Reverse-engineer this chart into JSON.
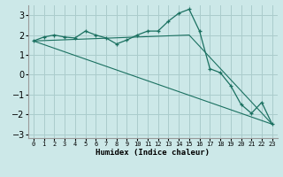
{
  "xlabel": "Humidex (Indice chaleur)",
  "ylabel": "",
  "xlim": [
    -0.5,
    23.5
  ],
  "ylim": [
    -3.2,
    3.5
  ],
  "yticks": [
    -3,
    -2,
    -1,
    0,
    1,
    2,
    3
  ],
  "xtick_labels": [
    "0",
    "1",
    "2",
    "3",
    "4",
    "5",
    "6",
    "7",
    "8",
    "9",
    "10",
    "11",
    "12",
    "13",
    "14",
    "15",
    "16",
    "17",
    "18",
    "19",
    "20",
    "21",
    "22",
    "23"
  ],
  "background_color": "#cce8e8",
  "grid_color": "#aacccc",
  "line_color": "#1a7060",
  "line1_x": [
    0,
    1,
    2,
    3,
    4,
    5,
    6,
    7,
    8,
    9,
    10,
    11,
    12,
    13,
    14,
    15,
    16,
    17,
    18,
    19,
    20,
    21,
    22,
    23
  ],
  "line1_y": [
    1.7,
    1.9,
    2.0,
    1.9,
    1.85,
    2.2,
    2.0,
    1.85,
    1.55,
    1.75,
    2.0,
    2.2,
    2.2,
    2.7,
    3.1,
    3.3,
    2.2,
    0.3,
    0.1,
    -0.55,
    -1.5,
    -1.95,
    -1.4,
    -2.5
  ],
  "line2_x": [
    0,
    15,
    23
  ],
  "line2_y": [
    1.7,
    2.0,
    -2.5
  ],
  "line3_x": [
    0,
    23
  ],
  "line3_y": [
    1.7,
    -2.5
  ]
}
